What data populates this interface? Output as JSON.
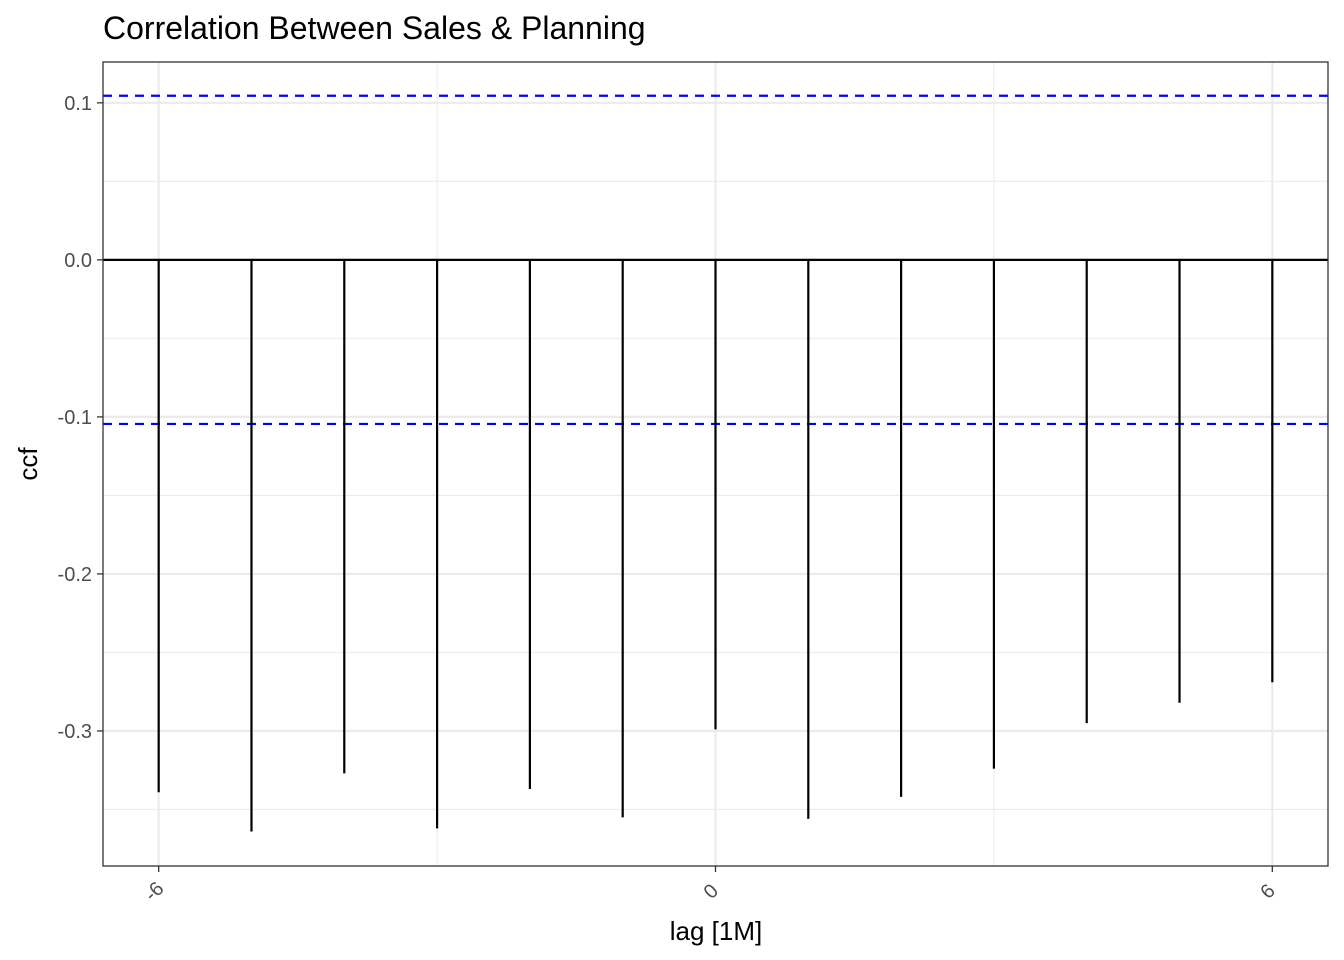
{
  "chart_data": {
    "type": "bar",
    "title": "Correlation Between Sales & Planning",
    "xlabel": "lag [1M]",
    "ylabel": "ccf",
    "x": [
      -6,
      -5,
      -4,
      -3,
      -2,
      -1,
      0,
      1,
      2,
      3,
      4,
      5,
      6
    ],
    "values": [
      -0.339,
      -0.364,
      -0.327,
      -0.362,
      -0.337,
      -0.355,
      -0.299,
      -0.356,
      -0.342,
      -0.324,
      -0.295,
      -0.282,
      -0.269
    ],
    "xlim": [
      -6.6,
      6.6
    ],
    "ylim": [
      -0.386,
      0.126
    ],
    "x_ticks": [
      -6,
      0,
      6
    ],
    "x_tick_labels": [
      "-6",
      "0",
      "6"
    ],
    "y_ticks": [
      -0.3,
      -0.2,
      -0.1,
      0.0,
      0.1
    ],
    "y_tick_labels": [
      "-0.3",
      "-0.2",
      "-0.1",
      "0.0",
      "0.1"
    ],
    "confidence_bounds": [
      0.1045,
      -0.1045
    ],
    "grid": true,
    "colors": {
      "bars": "#000000",
      "confidence": "#0000ff",
      "zero_line": "#000000",
      "grid": "#ebebeb"
    }
  }
}
